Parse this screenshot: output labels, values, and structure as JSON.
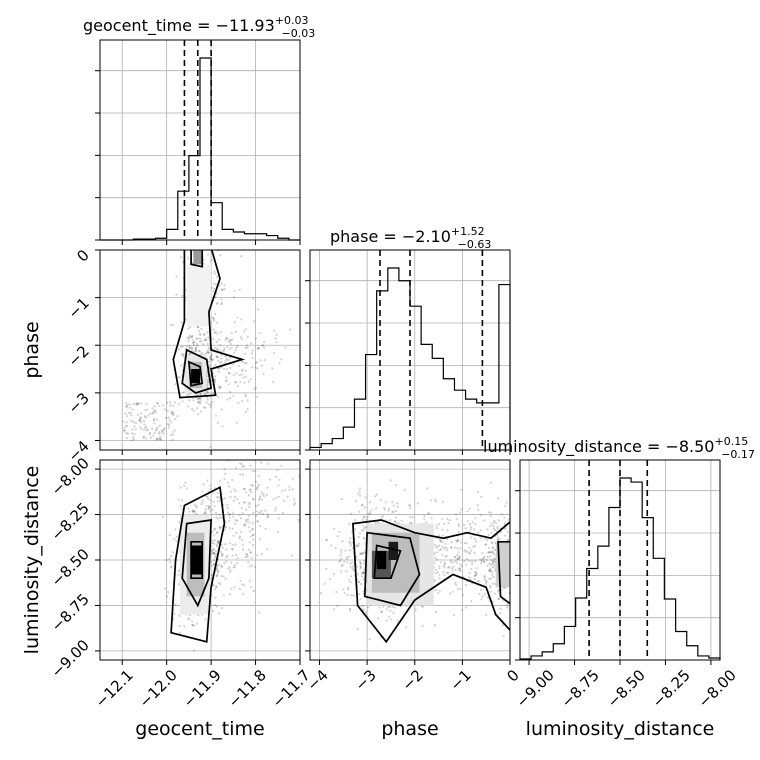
{
  "chart_data": {
    "type": "corner",
    "parameters": [
      "geocent_time",
      "phase",
      "luminosity_distance"
    ],
    "axis_labels": {
      "geocent_time": "geocent_time",
      "phase": "phase",
      "luminosity_distance": "luminosity_distance"
    },
    "ranges": {
      "geocent_time": [
        -12.15,
        -11.7
      ],
      "phase": [
        -4.2,
        0
      ],
      "luminosity_distance": [
        -9.05,
        -7.95
      ]
    },
    "ticks": {
      "geocent_time": [
        -12.1,
        -12.0,
        -11.9,
        -11.8,
        -11.7
      ],
      "phase": [
        -4,
        -3,
        -2,
        -1,
        0
      ],
      "luminosity_distance": [
        -9.0,
        -8.75,
        -8.5,
        -8.25,
        -8.0
      ]
    },
    "tick_labels": {
      "geocent_time": [
        "−12.1",
        "−12.0",
        "−11.9",
        "−11.8",
        "−11.7"
      ],
      "phase_x": [
        "−4",
        "−3",
        "−2",
        "−1",
        "0"
      ],
      "phase_y": [
        "−4",
        "−3",
        "−2",
        "−1",
        "0"
      ],
      "luminosity_distance_x": [
        "−9.00",
        "−8.75",
        "−8.50",
        "−8.25",
        "−8.00"
      ],
      "luminosity_distance_y": [
        "−9.00",
        "−8.75",
        "−8.50",
        "−8.25",
        "−8.00"
      ]
    },
    "titles": {
      "geocent_time": {
        "prefix": "geocent_time = −11.93",
        "sup": "+0.03",
        "sub": "−0.03"
      },
      "phase": {
        "prefix": "phase = −2.10",
        "sup": "+1.52",
        "sub": "−0.63"
      },
      "luminosity_distance": {
        "prefix": "luminosity_distance = −8.50",
        "sup": "+0.15",
        "sub": "−0.17"
      }
    },
    "quantiles": {
      "geocent_time": [
        -11.96,
        -11.93,
        -11.9
      ],
      "phase": [
        -2.73,
        -2.1,
        -0.58
      ],
      "luminosity_distance": [
        -8.67,
        -8.5,
        -8.35
      ]
    },
    "histograms": {
      "geocent_time": {
        "edges": [
          -12.15,
          -12.125,
          -12.1,
          -12.075,
          -12.05,
          -12.025,
          -12.0,
          -11.975,
          -11.95,
          -11.925,
          -11.9,
          -11.875,
          -11.85,
          -11.825,
          -11.8,
          -11.775,
          -11.75,
          -11.725,
          -11.7
        ],
        "counts": [
          0,
          0,
          0,
          1,
          1,
          2,
          12,
          55,
          95,
          205,
          42,
          12,
          9,
          7,
          7,
          5,
          2,
          0
        ]
      },
      "phase": {
        "edges": [
          -4.2,
          -3.966,
          -3.733,
          -3.5,
          -3.266,
          -3.033,
          -2.8,
          -2.566,
          -2.333,
          -2.1,
          -1.866,
          -1.633,
          -1.4,
          -1.166,
          -0.933,
          -0.7,
          -0.466,
          -0.233,
          0
        ],
        "counts": [
          2,
          5,
          9,
          18,
          40,
          75,
          125,
          143,
          133,
          113,
          83,
          72,
          56,
          47,
          40,
          37,
          37,
          130
        ]
      },
      "luminosity_distance": {
        "edges": [
          -9.05,
          -8.989,
          -8.928,
          -8.867,
          -8.806,
          -8.744,
          -8.683,
          -8.622,
          -8.561,
          -8.5,
          -8.439,
          -8.378,
          -8.317,
          -8.256,
          -8.194,
          -8.133,
          -8.072,
          -8.011,
          -7.95
        ],
        "counts": [
          1,
          4,
          8,
          16,
          33,
          61,
          90,
          112,
          150,
          179,
          175,
          140,
          100,
          60,
          28,
          14,
          4,
          2
        ]
      }
    },
    "density_peaks": {
      "phase_vs_geocent_time": {
        "x": -11.93,
        "y": -2.65
      },
      "luminosity_distance_vs_geocent_time": {
        "x": -11.93,
        "y": -8.5
      },
      "luminosity_distance_vs_phase": {
        "x": -2.5,
        "y": -8.5
      }
    }
  }
}
